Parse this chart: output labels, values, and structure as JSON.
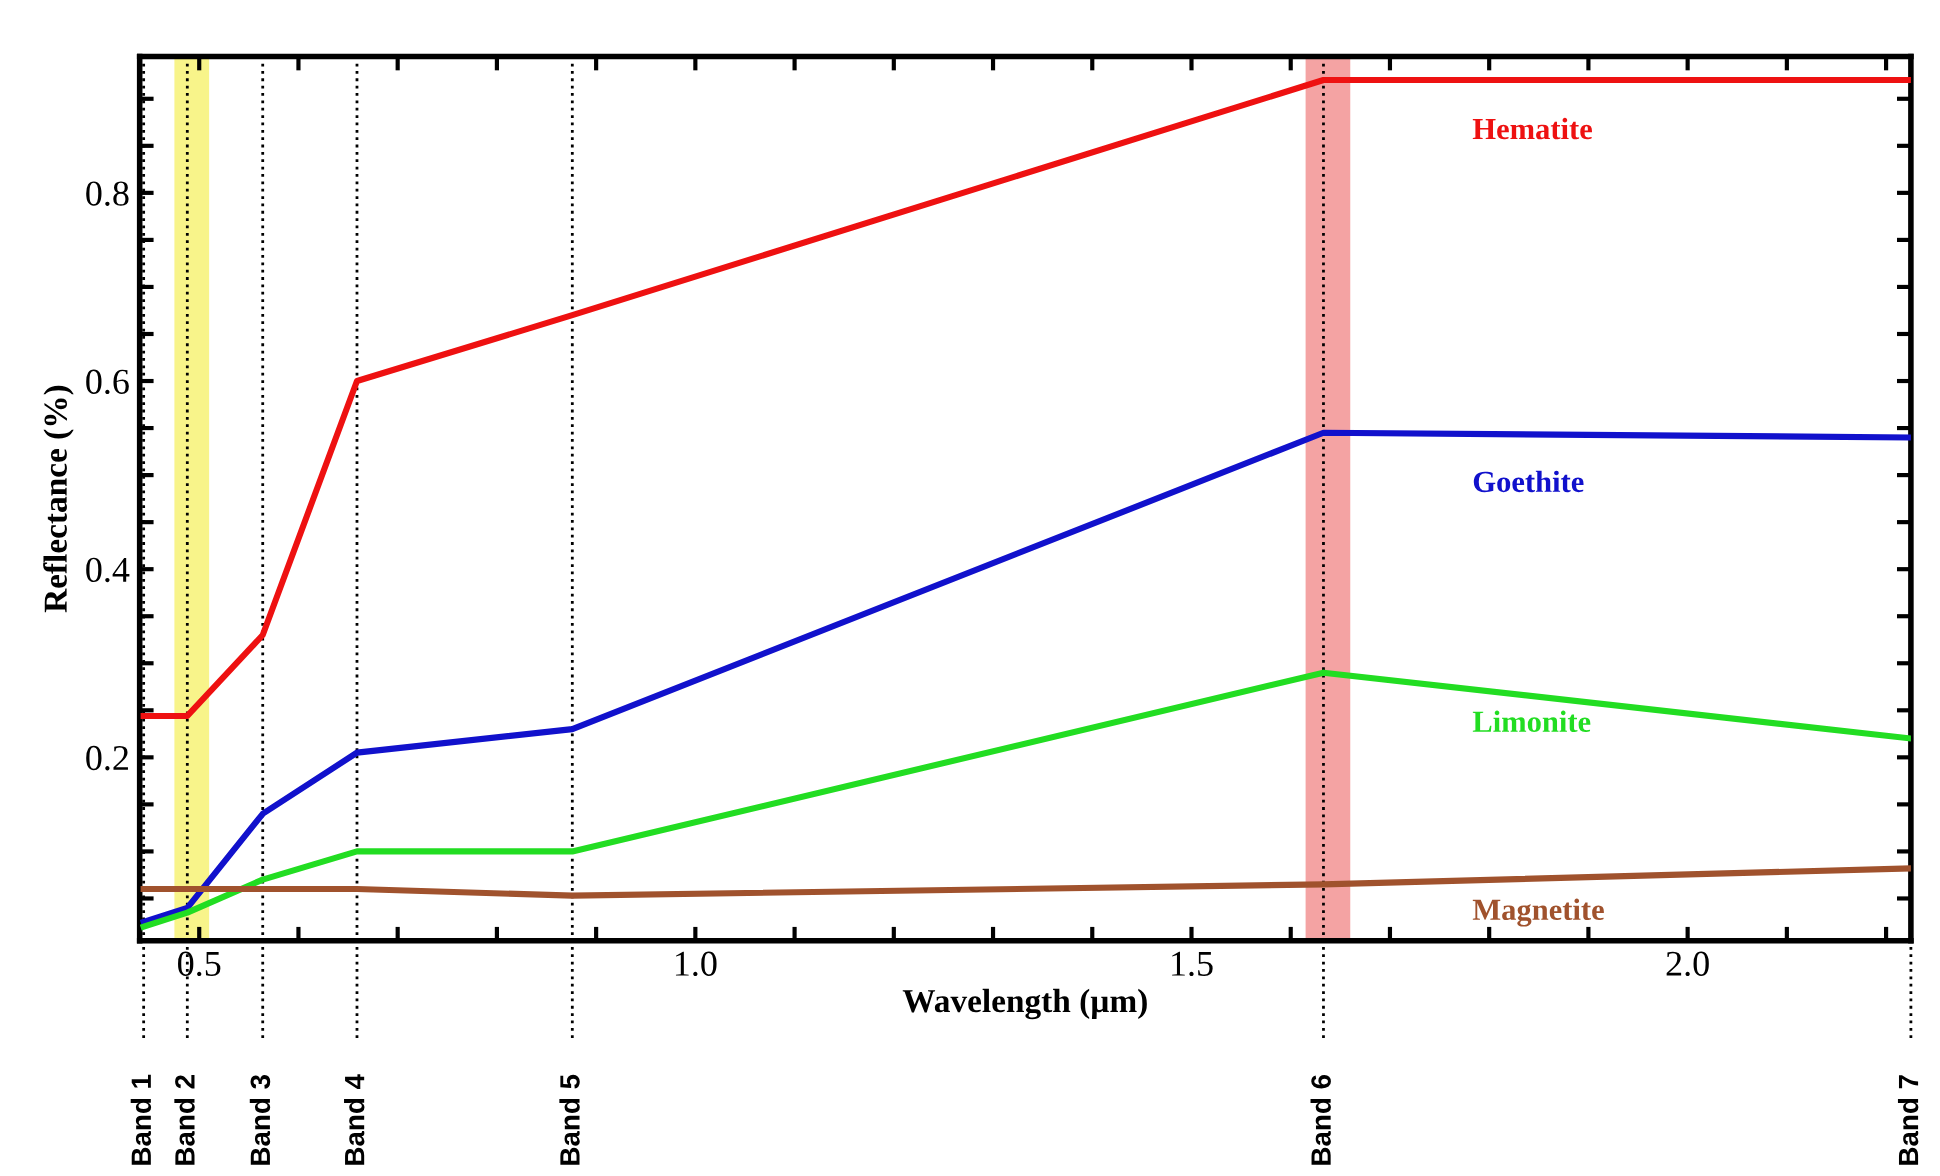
{
  "chart_data": {
    "type": "line",
    "xlabel": "Wavelength (µm)",
    "ylabel": "Reflectance (%)",
    "xlim": [
      0.44,
      2.225
    ],
    "ylim": [
      0.005,
      0.945
    ],
    "xticks": [
      {
        "value": 0.5,
        "label": "0.5"
      },
      {
        "value": 0.6,
        "label": null
      },
      {
        "value": 0.7,
        "label": null
      },
      {
        "value": 0.8,
        "label": null
      },
      {
        "value": 0.9,
        "label": null
      },
      {
        "value": 1.0,
        "label": "1.0"
      },
      {
        "value": 1.1,
        "label": null
      },
      {
        "value": 1.2,
        "label": null
      },
      {
        "value": 1.3,
        "label": null
      },
      {
        "value": 1.4,
        "label": null
      },
      {
        "value": 1.5,
        "label": "1.5"
      },
      {
        "value": 1.6,
        "label": null
      },
      {
        "value": 1.7,
        "label": null
      },
      {
        "value": 1.8,
        "label": null
      },
      {
        "value": 1.9,
        "label": null
      },
      {
        "value": 2.0,
        "label": "2.0"
      },
      {
        "value": 2.1,
        "label": null
      },
      {
        "value": 2.2,
        "label": null
      }
    ],
    "yticks": [
      {
        "value": 0.05,
        "label": null
      },
      {
        "value": 0.1,
        "label": null
      },
      {
        "value": 0.15,
        "label": null
      },
      0.2,
      {
        "value": 0.25,
        "label": null
      },
      {
        "value": 0.3,
        "label": null
      },
      {
        "value": 0.35,
        "label": null
      },
      0.4,
      {
        "value": 0.45,
        "label": null
      },
      {
        "value": 0.5,
        "label": null
      },
      {
        "value": 0.55,
        "label": null
      },
      0.6,
      {
        "value": 0.65,
        "label": null
      },
      {
        "value": 0.7,
        "label": null
      },
      {
        "value": 0.75,
        "label": null
      },
      0.8,
      {
        "value": 0.85,
        "label": null
      },
      {
        "value": 0.9,
        "label": null
      }
    ],
    "x": [
      0.444,
      0.488,
      0.564,
      0.659,
      0.876,
      1.633,
      2.225
    ],
    "series": [
      {
        "name": "Hematite",
        "color": "#ee1111",
        "values": [
          0.244,
          0.244,
          0.33,
          0.6,
          0.67,
          0.92,
          0.92
        ]
      },
      {
        "name": "Goethite",
        "color": "#1111cc",
        "values": [
          0.025,
          0.04,
          0.14,
          0.205,
          0.23,
          0.545,
          0.54
        ]
      },
      {
        "name": "Limonite",
        "color": "#22dd22",
        "values": [
          0.02,
          0.035,
          0.07,
          0.1,
          0.1,
          0.29,
          0.22
        ]
      },
      {
        "name": "Magnetite",
        "color": "#a0522d",
        "values": [
          0.06,
          0.06,
          0.06,
          0.06,
          0.053,
          0.065,
          0.082
        ]
      }
    ],
    "ref_lines": [
      {
        "axis": "x",
        "value": 0.444,
        "label": "Band 1",
        "line_style": "dotted"
      },
      {
        "axis": "x",
        "value": 0.488,
        "label": "Band 2",
        "line_style": "dotted"
      },
      {
        "axis": "x",
        "value": 0.564,
        "label": "Band 3",
        "line_style": "dotted"
      },
      {
        "axis": "x",
        "value": 0.659,
        "label": "Band 4",
        "line_style": "dotted"
      },
      {
        "axis": "x",
        "value": 0.876,
        "label": "Band 5",
        "line_style": "dotted"
      },
      {
        "axis": "x",
        "value": 1.633,
        "label": "Band 6",
        "line_style": "dotted"
      },
      {
        "axis": "x",
        "value": 2.225,
        "label": "Band 7",
        "line_style": "dotted"
      }
    ],
    "bands": [
      {
        "axis": "x",
        "from": 0.475,
        "to": 0.51,
        "color": "#f8f48a"
      },
      {
        "axis": "x",
        "from": 1.615,
        "to": 1.66,
        "color": "#f4a3a3"
      }
    ],
    "legend": false,
    "grid": false,
    "marker": "none",
    "line_style": "solid"
  }
}
